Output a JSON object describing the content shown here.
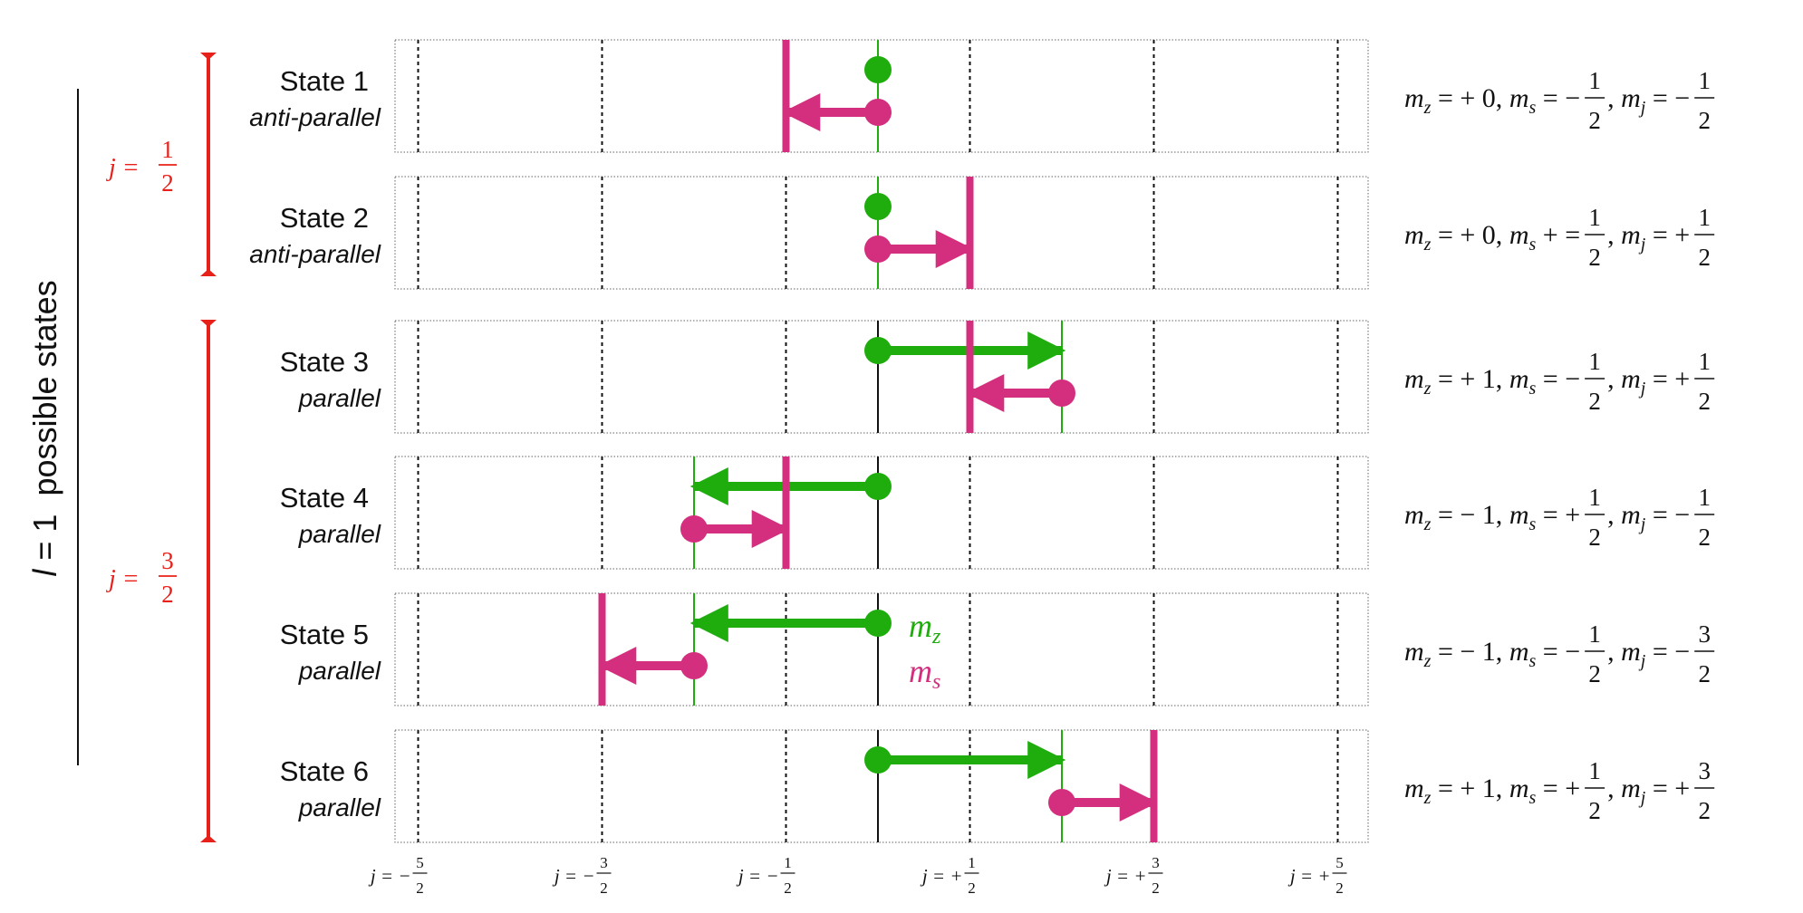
{
  "side_title": {
    "var": "l",
    "rest": " = 1  possible states"
  },
  "groups": [
    {
      "label": "j = ",
      "num": "1",
      "den": "2"
    },
    {
      "label": "j = ",
      "num": "3",
      "den": "2"
    }
  ],
  "axis": {
    "ticks": [
      {
        "prefix": "j = −",
        "num": "5",
        "den": "2",
        "value": -2.5
      },
      {
        "prefix": "j = −",
        "num": "3",
        "den": "2",
        "value": -1.5
      },
      {
        "prefix": "j = −",
        "num": "1",
        "den": "2",
        "value": -0.5
      },
      {
        "prefix": "j = +",
        "num": "1",
        "den": "2",
        "value": 0.5
      },
      {
        "prefix": "j = +",
        "num": "3",
        "den": "2",
        "value": 1.5
      },
      {
        "prefix": "j = +",
        "num": "5",
        "den": "2",
        "value": 2.5
      }
    ]
  },
  "legend": {
    "mz": "m",
    "mz_sub": "z",
    "ms": "m",
    "ms_sub": "s"
  },
  "colors": {
    "mz": "#1fad0e",
    "ms": "#d42e7e",
    "bracket": "#e8201a"
  },
  "states": [
    {
      "title": "State 1",
      "subtitle": "anti-parallel",
      "mz_value": 0,
      "ms_value": -0.5,
      "eq": {
        "mz": "+ 0,",
        "ms_op": "= −",
        "ms_num": "1",
        "ms_den": "2",
        "mj_op": "= −",
        "mj_num": "1",
        "mj_den": "2"
      }
    },
    {
      "title": "State 2",
      "subtitle": "anti-parallel",
      "mz_value": 0,
      "ms_value": 0.5,
      "eq": {
        "mz": "+ 0,",
        "ms_op": "+ =",
        "ms_num": "1",
        "ms_den": "2",
        "mj_op": "= +",
        "mj_num": "1",
        "mj_den": "2"
      }
    },
    {
      "title": "State 3",
      "subtitle": "parallel",
      "mz_value": 1,
      "ms_value": -0.5,
      "eq": {
        "mz": "+ 1,",
        "ms_op": "= −",
        "ms_num": "1",
        "ms_den": "2",
        "mj_op": "= +",
        "mj_num": "1",
        "mj_den": "2"
      }
    },
    {
      "title": "State 4",
      "subtitle": "parallel",
      "mz_value": -1,
      "ms_value": 0.5,
      "eq": {
        "mz": "− 1,",
        "ms_op": "= +",
        "ms_num": "1",
        "ms_den": "2",
        "mj_op": "= −",
        "mj_num": "1",
        "mj_den": "2"
      }
    },
    {
      "title": "State 5",
      "subtitle": "parallel",
      "mz_value": -1,
      "ms_value": -0.5,
      "eq": {
        "mz": "− 1,",
        "ms_op": "= −",
        "ms_num": "1",
        "ms_den": "2",
        "mj_op": "= −",
        "mj_num": "3",
        "mj_den": "2"
      }
    },
    {
      "title": "State 6",
      "subtitle": "parallel",
      "mz_value": 1,
      "ms_value": 0.5,
      "eq": {
        "mz": "+ 1,",
        "ms_op": "= +",
        "ms_num": "1",
        "ms_den": "2",
        "mj_op": "= +",
        "mj_num": "3",
        "mj_den": "2"
      }
    }
  ]
}
